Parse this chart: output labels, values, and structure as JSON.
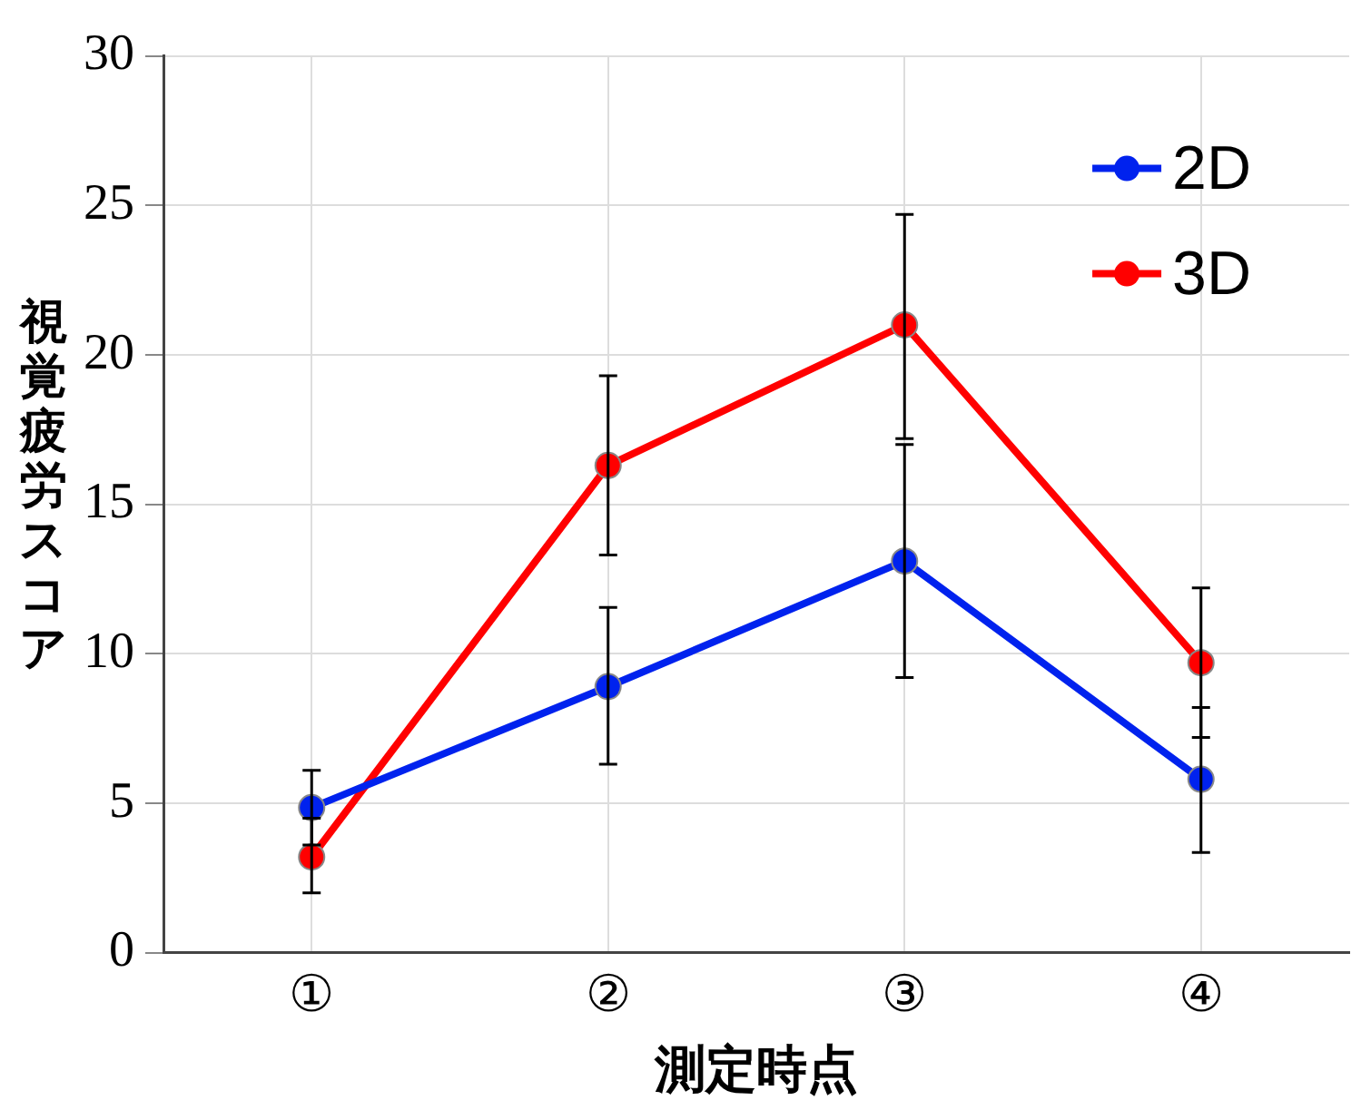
{
  "chart_data": {
    "type": "line",
    "xlabel": "測定時点",
    "ylabel": "視覚疲労スコア",
    "categories": [
      "①",
      "②",
      "③",
      "④"
    ],
    "series": [
      {
        "name": "2D",
        "color": "#0022ee",
        "values": [
          4.85,
          8.9,
          13.1,
          5.8
        ],
        "errors": [
          [
            3.6,
            6.1
          ],
          [
            6.3,
            11.55
          ],
          [
            9.2,
            17.0
          ],
          [
            3.35,
            8.2
          ]
        ]
      },
      {
        "name": "3D",
        "color": "#ff0000",
        "values": [
          3.2,
          16.3,
          21.0,
          9.7
        ],
        "errors": [
          [
            2.0,
            4.5
          ],
          [
            13.3,
            19.3
          ],
          [
            17.2,
            24.7
          ],
          [
            7.2,
            12.2
          ]
        ]
      }
    ],
    "ylim": [
      0,
      30
    ],
    "yticks": [
      0,
      5,
      10,
      15,
      20,
      25,
      30
    ],
    "grid": true,
    "legend": "top right",
    "marker": "circle",
    "line_style": "solid"
  }
}
